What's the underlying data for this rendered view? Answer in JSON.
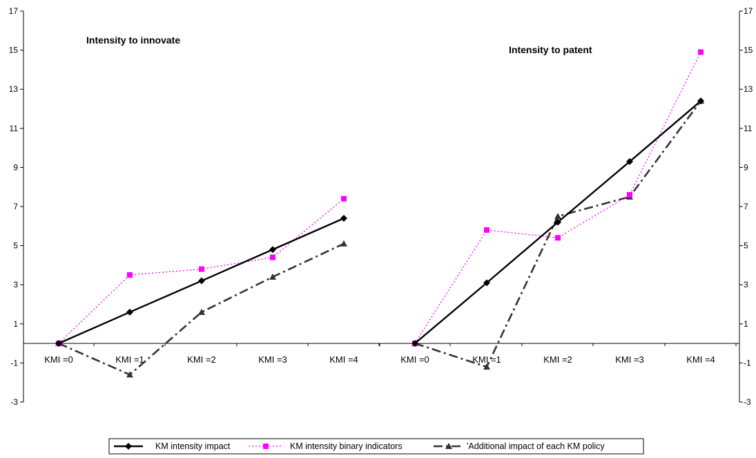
{
  "chart_data": {
    "type": "line",
    "y_ticks": [
      "-3",
      "-1",
      "1",
      "3",
      "5",
      "7",
      "9",
      "11",
      "13",
      "15",
      "17"
    ],
    "ylim": [
      -3,
      17
    ],
    "grid": false,
    "legend_position": "bottom-center",
    "panels": [
      {
        "title": "Intensity to innovate",
        "categories": [
          "KMI =0",
          "KMI =1",
          "KMI =2",
          "KMI =3",
          "KMI =4"
        ],
        "series": [
          {
            "name": "KM intensity impact",
            "values": [
              0,
              1.6,
              3.2,
              4.8,
              6.4
            ]
          },
          {
            "name": "KM intensity binary indicators",
            "values": [
              0,
              3.5,
              3.8,
              4.4,
              7.4
            ]
          },
          {
            "name": "Additional impact of each KM policy",
            "values": [
              0,
              -1.6,
              1.6,
              3.4,
              5.1
            ]
          }
        ]
      },
      {
        "title": "Intensity to patent",
        "categories": [
          "KMI =0",
          "KMI =1",
          "KMI =2",
          "KMI =3",
          "KMI =4"
        ],
        "series": [
          {
            "name": "KM intensity impact",
            "values": [
              0,
              3.1,
              6.2,
              9.3,
              12.4
            ]
          },
          {
            "name": "KM intensity binary indicators",
            "values": [
              0,
              5.8,
              5.4,
              7.6,
              14.9
            ]
          },
          {
            "name": "Additional impact of each KM policy",
            "values": [
              0,
              -1.2,
              6.5,
              7.5,
              12.4
            ]
          }
        ]
      }
    ],
    "series_styles": [
      {
        "color": "#000000",
        "marker": "diamond",
        "dash": "solid"
      },
      {
        "color": "#ff00ff",
        "marker": "square",
        "dash": "dotted"
      },
      {
        "color": "#333333",
        "marker": "triangle",
        "dash": "dashdot"
      }
    ],
    "legend": {
      "items": [
        "KM intensity impact",
        "KM intensity binary indicators",
        "'Additional impact of each KM policy"
      ]
    }
  }
}
